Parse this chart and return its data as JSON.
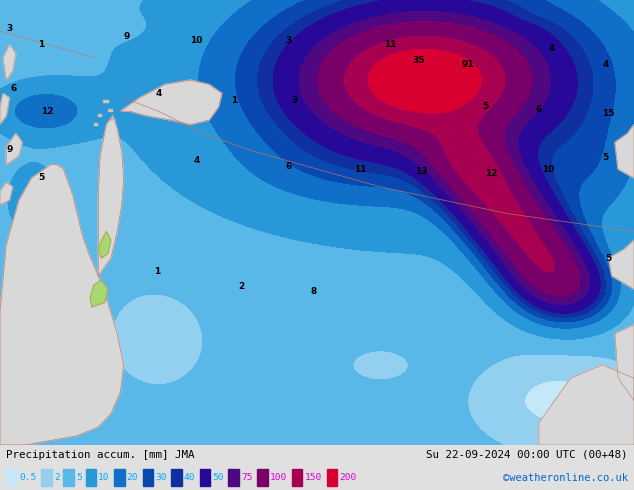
{
  "title_left": "Precipitation accum. [mm] JMA",
  "title_right": "Su 22-09-2024 00:00 UTC (00+48)",
  "credit": "©weatheronline.co.uk",
  "legend_levels": [
    0.5,
    2,
    5,
    10,
    20,
    30,
    40,
    50,
    75,
    100,
    150,
    200
  ],
  "colormap_levels": [
    0,
    0.5,
    2,
    5,
    10,
    20,
    30,
    40,
    50,
    75,
    100,
    150,
    200,
    500
  ],
  "colormap_colors": [
    "#e8f4fc",
    "#c5e8f8",
    "#93d0f0",
    "#5ab8e8",
    "#2898d8",
    "#1070c8",
    "#0848b0",
    "#1030a0",
    "#280898",
    "#500880",
    "#780068",
    "#a80050",
    "#d80030"
  ],
  "land_color": "#d8d8d8",
  "green_patch_color": "#a8d870",
  "border_color": "#c07860",
  "inner_border_color": "#a06858",
  "fig_width": 6.34,
  "fig_height": 4.9,
  "dpi": 100,
  "legend_text_colors": {
    "0.5": "#00aaff",
    "2": "#00aaff",
    "5": "#00aaff",
    "10": "#00aaff",
    "20": "#00aaff",
    "30": "#00aaff",
    "40": "#00aaff",
    "50": "#00aaff",
    "75": "#dd00dd",
    "100": "#dd00dd",
    "150": "#dd00dd",
    "200": "#dd00dd"
  },
  "bottom_bar_color": "#e0e0e0",
  "credit_color": "#0066cc"
}
